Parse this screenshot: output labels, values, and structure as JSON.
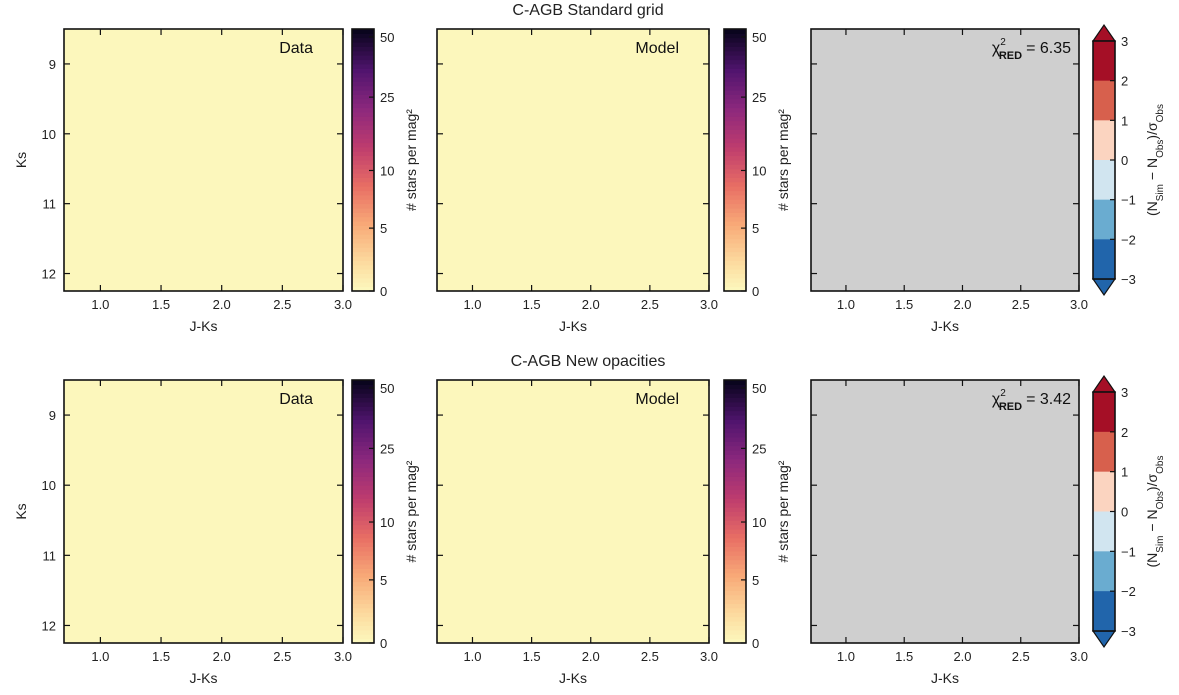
{
  "chart_data": [
    {
      "type": "heatmap",
      "row_title": "C-AGB Standard grid",
      "panels": [
        {
          "kind": "data",
          "label": "Data",
          "xlabel": "J-Ks",
          "ylabel": "Ks",
          "xlim": [
            0.7,
            3.0
          ],
          "ylim": [
            12.25,
            8.5
          ],
          "xticks": [
            "1.0",
            "1.5",
            "2.0",
            "2.5",
            "3.0"
          ],
          "yticks": [
            "9",
            "10",
            "11",
            "12"
          ],
          "background": "#fcf7bc",
          "density": {
            "center": [
              1.65,
              10.75
            ],
            "sigma_x": 0.28,
            "sigma_y": 0.55,
            "rho": 0.6,
            "peak": 1.0,
            "sparse": true
          },
          "colorbar": {
            "label": "# stars per mag²",
            "ticks": [
              "0",
              "5",
              "10",
              "25",
              "50"
            ],
            "cmap": "magma_r"
          }
        },
        {
          "kind": "model",
          "label": "Model",
          "xlabel": "J-Ks",
          "xlim": [
            0.7,
            3.0
          ],
          "ylim": [
            12.25,
            8.5
          ],
          "xticks": [
            "1.0",
            "1.5",
            "2.0",
            "2.5",
            "3.0"
          ],
          "background": "#fcf7bc",
          "density": {
            "center": [
              1.53,
              10.9
            ],
            "sigma_x": 0.12,
            "sigma_y": 0.55,
            "rho": 0.75,
            "peak": 1.0,
            "sparse": false
          },
          "colorbar": {
            "label": "# stars per mag²",
            "ticks": [
              "0",
              "5",
              "10",
              "25",
              "50"
            ],
            "cmap": "magma_r"
          }
        },
        {
          "kind": "residual",
          "chi2_label": "χ²RED = 6.35",
          "chi2_prefix": "χ",
          "chi2_sup": "2",
          "chi2_sub": "RED",
          "chi2_value": "= 6.35",
          "xlabel": "J-Ks",
          "xlim": [
            0.7,
            3.0
          ],
          "ylim": [
            12.25,
            8.5
          ],
          "xticks": [
            "1.0",
            "1.5",
            "2.0",
            "2.5",
            "3.0"
          ],
          "background": "#cfcfcf",
          "residual_pattern": "left_positive",
          "colorbar": {
            "label": "(N_Sim − N_Obs)/σ_Obs",
            "ticks": [
              "3",
              "2",
              "1",
              "0",
              "−1",
              "−2",
              "−3"
            ],
            "cmap": "RdBu_r",
            "range": [
              -3,
              3
            ]
          }
        }
      ]
    },
    {
      "type": "heatmap",
      "row_title": "C-AGB New opacities",
      "panels": [
        {
          "kind": "data",
          "label": "Data",
          "xlabel": "J-Ks",
          "ylabel": "Ks",
          "xlim": [
            0.7,
            3.0
          ],
          "ylim": [
            12.25,
            8.5
          ],
          "xticks": [
            "1.0",
            "1.5",
            "2.0",
            "2.5",
            "3.0"
          ],
          "yticks": [
            "9",
            "10",
            "11",
            "12"
          ],
          "background": "#fcf7bc",
          "density": {
            "center": [
              1.65,
              10.75
            ],
            "sigma_x": 0.28,
            "sigma_y": 0.55,
            "rho": 0.6,
            "peak": 1.0,
            "sparse": true
          },
          "colorbar": {
            "label": "# stars per mag²",
            "ticks": [
              "0",
              "5",
              "10",
              "25",
              "50"
            ],
            "cmap": "magma_r"
          }
        },
        {
          "kind": "model",
          "label": "Model",
          "xlabel": "J-Ks",
          "xlim": [
            0.7,
            3.0
          ],
          "ylim": [
            12.25,
            8.5
          ],
          "xticks": [
            "1.0",
            "1.5",
            "2.0",
            "2.5",
            "3.0"
          ],
          "background": "#fcf7bc",
          "density": {
            "center": [
              1.62,
              10.85
            ],
            "sigma_x": 0.17,
            "sigma_y": 0.55,
            "rho": 0.8,
            "peak": 0.75,
            "sparse": false
          },
          "colorbar": {
            "label": "# stars per mag²",
            "ticks": [
              "0",
              "5",
              "10",
              "25",
              "50"
            ],
            "cmap": "magma_r"
          }
        },
        {
          "kind": "residual",
          "chi2_label": "χ²RED = 3.42",
          "chi2_prefix": "χ",
          "chi2_sup": "2",
          "chi2_sub": "RED",
          "chi2_value": "= 3.42",
          "xlabel": "J-Ks",
          "xlim": [
            0.7,
            3.0
          ],
          "ylim": [
            12.25,
            8.5
          ],
          "xticks": [
            "1.0",
            "1.5",
            "2.0",
            "2.5",
            "3.0"
          ],
          "background": "#cfcfcf",
          "residual_pattern": "diagonal_positive",
          "colorbar": {
            "label": "(N_Sim − N_Obs)/σ_Obs",
            "ticks": [
              "3",
              "2",
              "1",
              "0",
              "−1",
              "−2",
              "−3"
            ],
            "cmap": "RdBu_r",
            "range": [
              -3,
              3
            ]
          }
        }
      ]
    }
  ]
}
